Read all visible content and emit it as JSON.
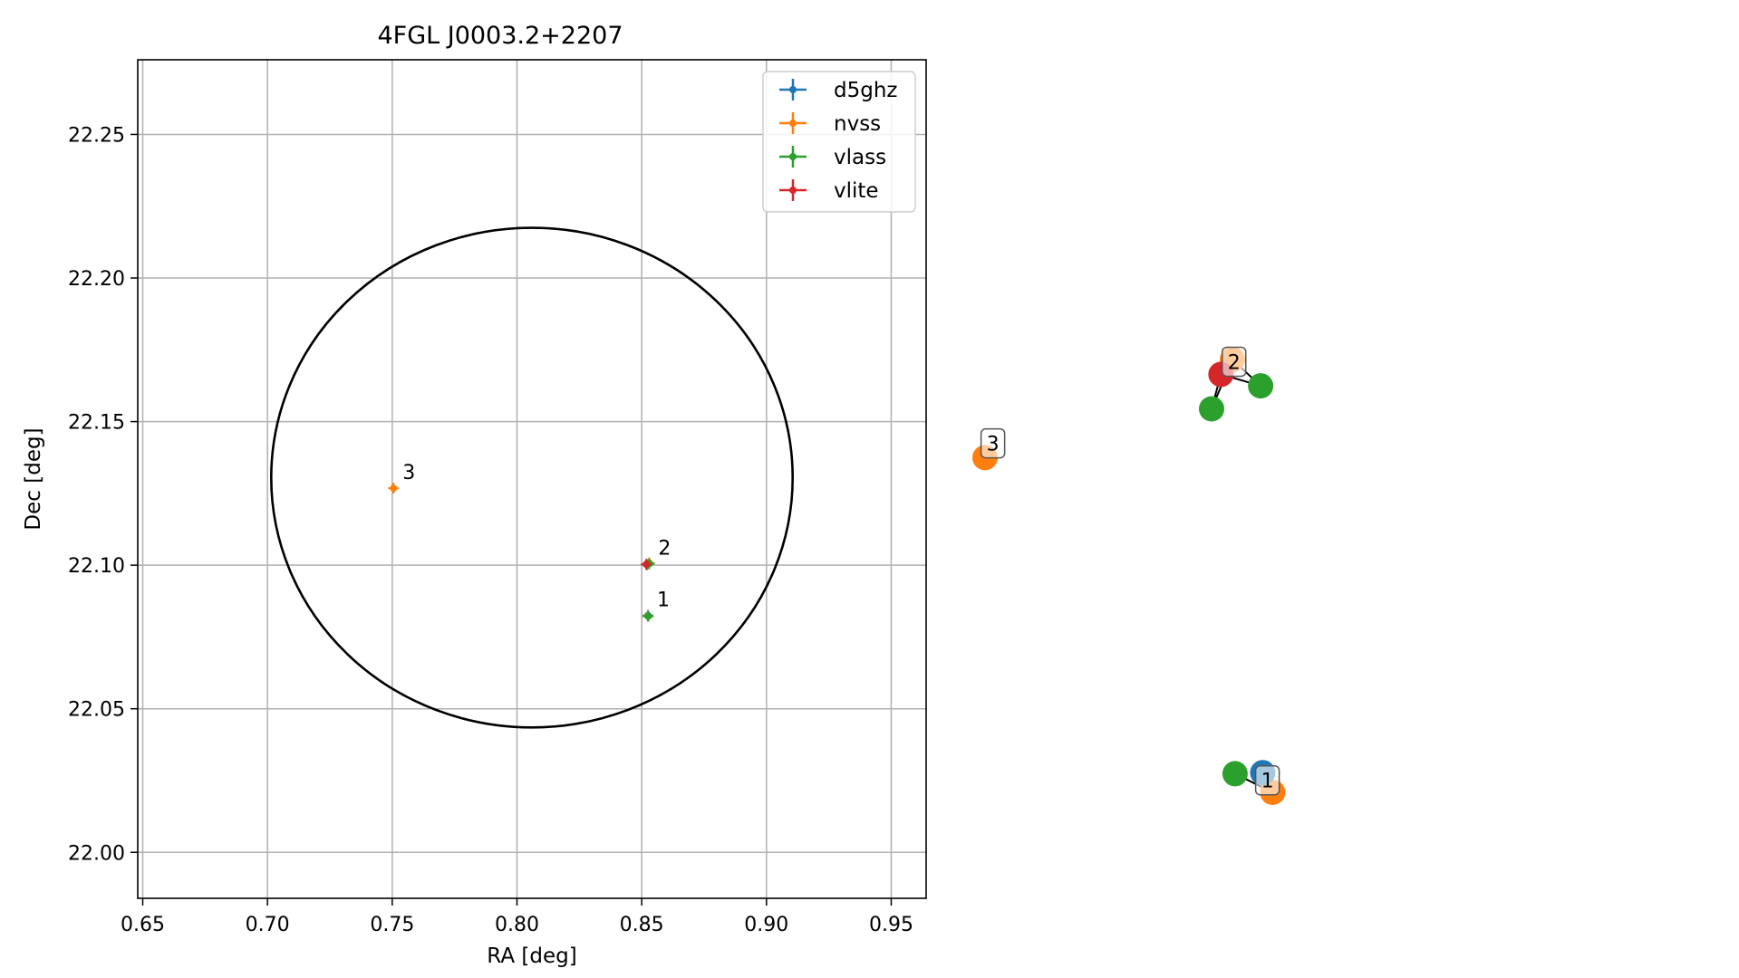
{
  "chart_data": [
    {
      "type": "scatter",
      "title": "4FGL J0003.2+2207",
      "xlabel": "RA [deg]",
      "ylabel": "Dec [deg]",
      "xlim": [
        0.648,
        0.964
      ],
      "ylim": [
        21.984,
        22.276
      ],
      "x_ticks": [
        0.65,
        0.7,
        0.75,
        0.8,
        0.85,
        0.9,
        0.95
      ],
      "y_ticks": [
        22.0,
        22.05,
        22.1,
        22.15,
        22.2,
        22.25
      ],
      "x_tick_labels": [
        "0.65",
        "0.70",
        "0.75",
        "0.80",
        "0.85",
        "0.90",
        "0.95"
      ],
      "y_tick_labels": [
        "22.00",
        "22.05",
        "22.10",
        "22.15",
        "22.20",
        "22.25"
      ],
      "grid": true,
      "legend_placement": "top-right",
      "series": [
        {
          "name": "d5ghz",
          "color": "#1f77b4",
          "points": [
            {
              "x": 0.8525,
              "y": 22.0825
            }
          ]
        },
        {
          "name": "nvss",
          "color": "#ff7f0e",
          "points": [
            {
              "x": 0.7505,
              "y": 22.1268
            },
            {
              "x": 0.853,
              "y": 22.1008
            },
            {
              "x": 0.8525,
              "y": 22.0823
            }
          ]
        },
        {
          "name": "vlass",
          "color": "#2ca02c",
          "points": [
            {
              "x": 0.8526,
              "y": 22.0822
            },
            {
              "x": 0.853,
              "y": 22.1005
            },
            {
              "x": 0.8522,
              "y": 22.1002
            }
          ]
        },
        {
          "name": "vlite",
          "color": "#d62728",
          "points": [
            {
              "x": 0.8518,
              "y": 22.1003
            }
          ]
        }
      ],
      "ellipse": {
        "center": [
          0.806,
          22.1305
        ],
        "semi_x": 0.1045,
        "semi_y": 0.087,
        "color": "#000000"
      },
      "annotations": [
        {
          "text": "1",
          "x": 0.8525,
          "y": 22.0825
        },
        {
          "text": "2",
          "x": 0.853,
          "y": 22.1005
        },
        {
          "text": "3",
          "x": 0.7505,
          "y": 22.1268
        }
      ]
    },
    {
      "type": "network",
      "nodes": [
        {
          "id": "n2_orange",
          "color": "#ff7f0e",
          "x": 0.474,
          "y": 0.79
        },
        {
          "id": "n2_red",
          "color": "#d62728",
          "x": 0.452,
          "y": 0.763
        },
        {
          "id": "n2_green_right",
          "color": "#2ca02c",
          "x": 0.528,
          "y": 0.742
        },
        {
          "id": "n2_green_left",
          "color": "#2ca02c",
          "x": 0.434,
          "y": 0.7
        },
        {
          "id": "n3_orange",
          "color": "#ff7f0e",
          "x": 0.0,
          "y": 0.611
        },
        {
          "id": "n1_orange",
          "color": "#ff7f0e",
          "x": 0.551,
          "y": 0.0
        },
        {
          "id": "n1_green",
          "color": "#2ca02c",
          "x": 0.479,
          "y": 0.034
        },
        {
          "id": "n1_blue",
          "color": "#1f77b4",
          "x": 0.532,
          "y": 0.036
        }
      ],
      "edges": [
        [
          "n2_red",
          "n2_orange"
        ],
        [
          "n2_red",
          "n2_green_right"
        ],
        [
          "n2_red",
          "n2_green_left"
        ],
        [
          "n2_orange",
          "n2_green_right"
        ],
        [
          "n2_orange",
          "n2_green_left"
        ],
        [
          "n1_green",
          "n1_orange"
        ],
        [
          "n1_blue",
          "n1_orange"
        ]
      ],
      "labels": [
        {
          "text": "2",
          "x": 0.477,
          "y": 0.786
        },
        {
          "text": "3",
          "x": 0.015,
          "y": 0.637
        },
        {
          "text": "1",
          "x": 0.541,
          "y": 0.022
        }
      ]
    }
  ]
}
